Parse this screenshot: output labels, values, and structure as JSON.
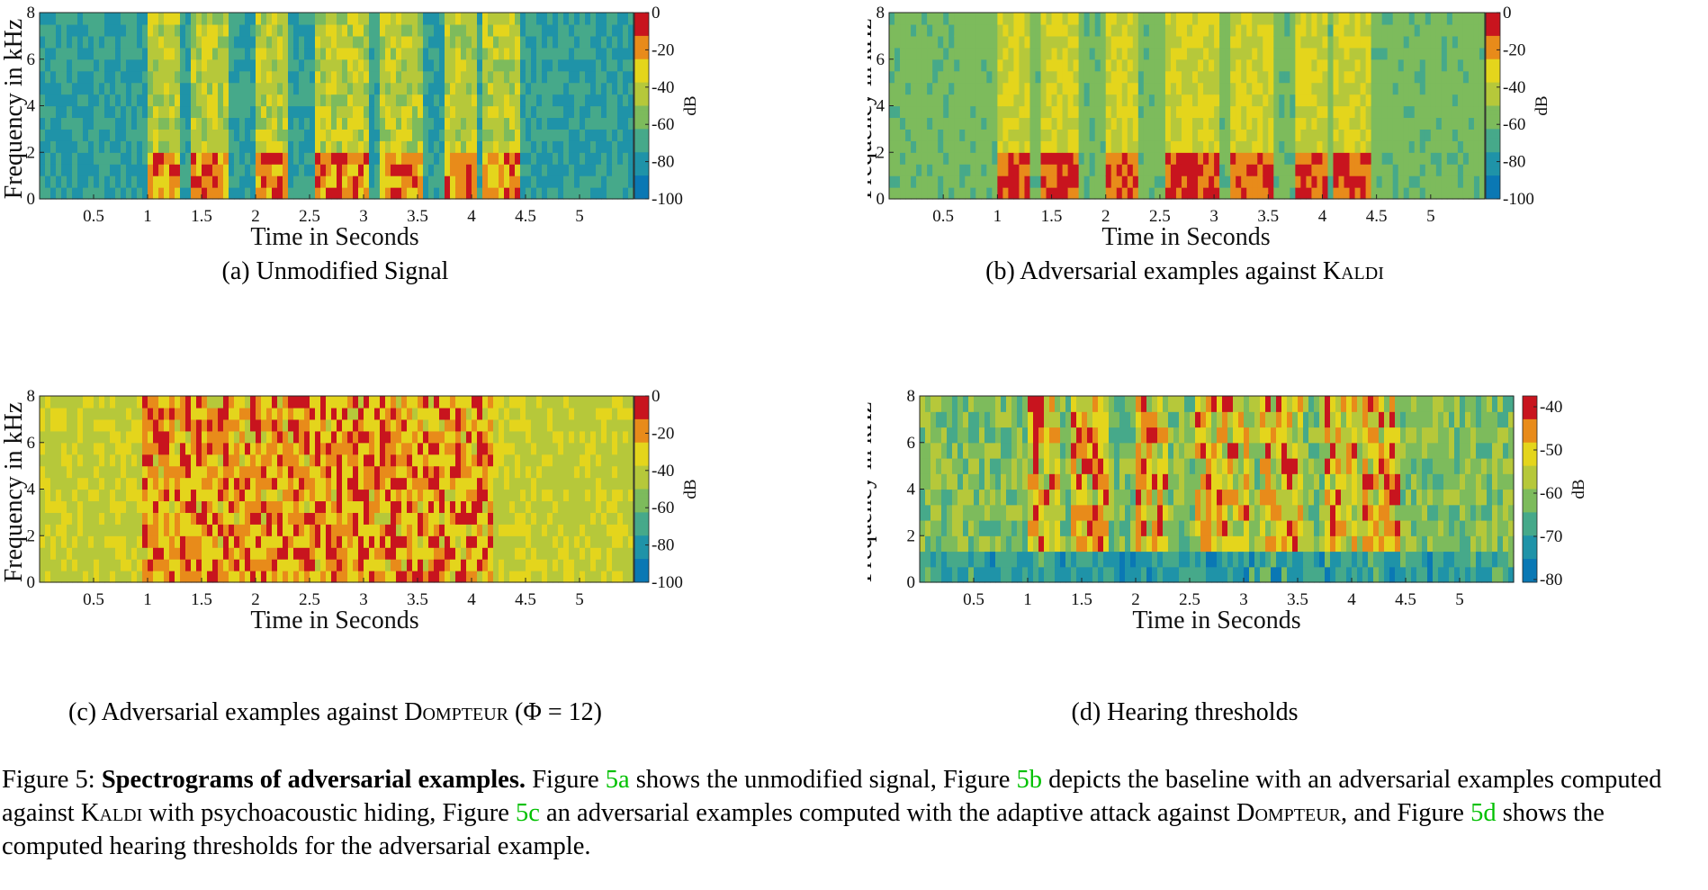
{
  "panels": [
    {
      "id": "a",
      "caption": "(a) Unmodified Signal",
      "ylabel": "Frequency in kHz",
      "xlabel": "Time in Seconds",
      "colorbar_label": "dB",
      "colorbar_ticks": [
        "0",
        "-20",
        "-40",
        "-60",
        "-80",
        "-100"
      ]
    },
    {
      "id": "b",
      "caption_prefix": "(b) Adversarial examples against ",
      "caption_sc": "Kaldi",
      "ylabel": "Frequency in kHz",
      "xlabel": "Time in Seconds",
      "colorbar_label": "dB",
      "colorbar_ticks": [
        "0",
        "-20",
        "-40",
        "-60",
        "-80",
        "-100"
      ]
    },
    {
      "id": "c",
      "caption_prefix": "(c) Adversarial examples against ",
      "caption_sc": "Dompteur",
      "caption_suffix": " (Φ = 12)",
      "ylabel": "Frequency in kHz",
      "xlabel": "Time in Seconds",
      "colorbar_label": "dB",
      "colorbar_ticks": [
        "0",
        "-20",
        "-40",
        "-60",
        "-80",
        "-100"
      ]
    },
    {
      "id": "d",
      "caption": "(d) Hearing thresholds",
      "ylabel": "Frequency in kHz",
      "xlabel": "Time in Seconds",
      "colorbar_label": "dB",
      "colorbar_ticks": [
        "-40",
        "-50",
        "-60",
        "-70",
        "-80"
      ]
    }
  ],
  "axes": {
    "x_ticks": [
      "0.5",
      "1",
      "1.5",
      "2",
      "2.5",
      "3",
      "3.5",
      "4",
      "4.5",
      "5"
    ],
    "y_ticks": [
      "0",
      "2",
      "4",
      "6",
      "8"
    ]
  },
  "caption": {
    "label": "Figure 5: ",
    "bold": "Spectrograms of adversarial examples.",
    "t1": " Figure ",
    "r1": "5a",
    "t2": " shows the unmodified signal, Figure ",
    "r2": "5b",
    "t3": " depicts the baseline with an adversarial examples computed against ",
    "sc1": "Kaldi",
    "t4": " with psychoacoustic hiding, Figure ",
    "r3": "5c",
    "t5": " an adversarial examples computed with the adaptive attack against ",
    "sc2": "Dompteur",
    "t6": ", and Figure ",
    "r4": "5d",
    "t7": " shows the computed hearing thresholds for the adversarial example."
  },
  "colors": {
    "colormap": [
      "#0a78b4",
      "#1f93a8",
      "#46a98a",
      "#7dbb5c",
      "#b6c83a",
      "#e4d51c",
      "#e88b1a",
      "#c8141e"
    ],
    "caption_ref": "#00c000"
  }
}
